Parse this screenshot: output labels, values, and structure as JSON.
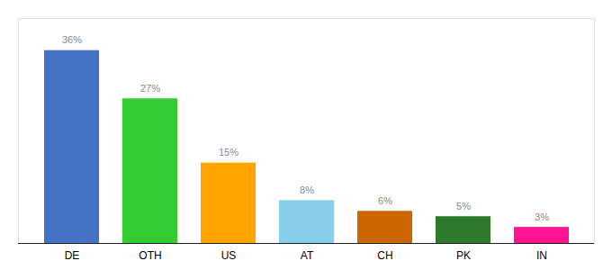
{
  "chart_data": {
    "type": "bar",
    "categories": [
      "DE",
      "OTH",
      "US",
      "AT",
      "CH",
      "PK",
      "IN"
    ],
    "values": [
      36,
      27,
      15,
      8,
      6,
      5,
      3
    ],
    "value_labels": [
      "36%",
      "27%",
      "15%",
      "8%",
      "6%",
      "5%",
      "3%"
    ],
    "colors": [
      "#4472C4",
      "#33CC33",
      "#FFA500",
      "#87CEEB",
      "#CC6600",
      "#2D7A2D",
      "#FF1493"
    ],
    "ylim": [
      0,
      42
    ],
    "grid": false,
    "data_labels": true,
    "tick_labels": "x"
  }
}
